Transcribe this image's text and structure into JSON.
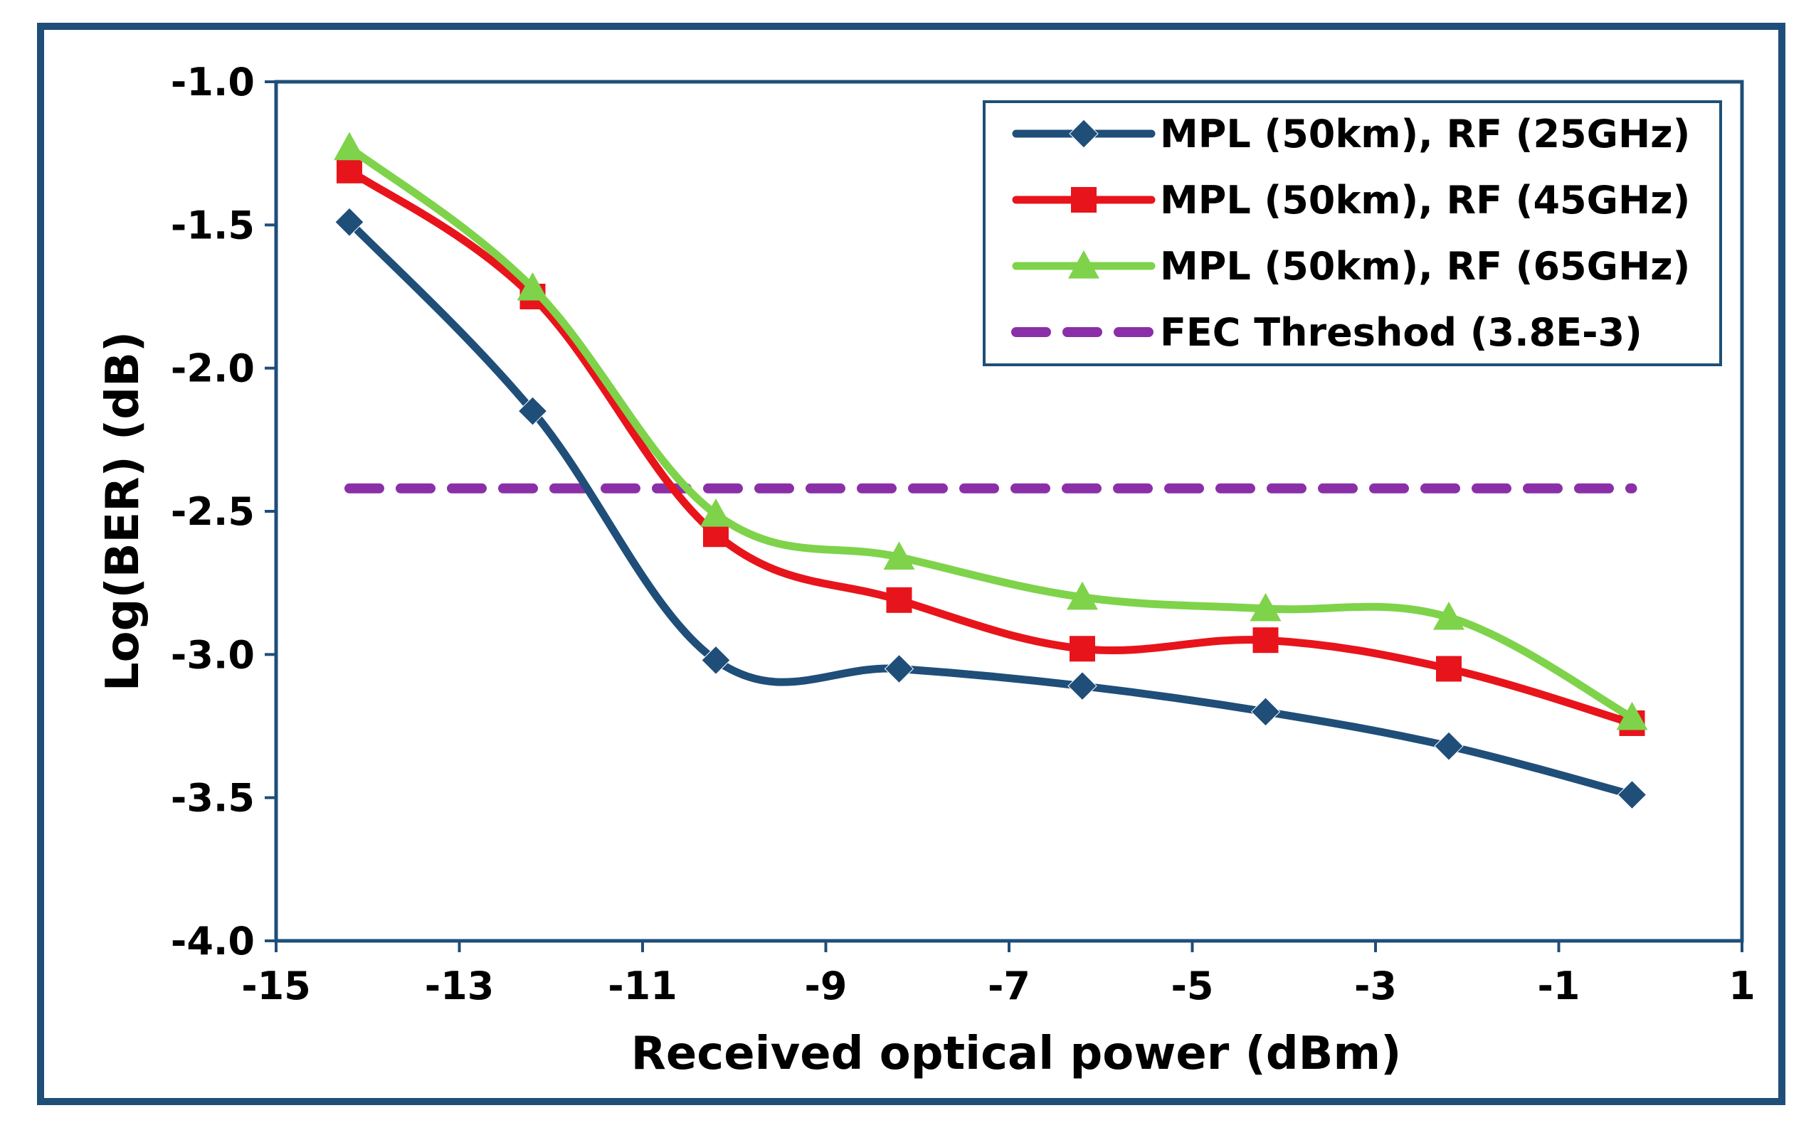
{
  "chart_data": {
    "type": "line",
    "title": "",
    "xlabel": "Received optical power (dBm)",
    "ylabel": "Log(BER) (dB)",
    "xlim": [
      -15,
      1
    ],
    "ylim": [
      -4.0,
      -1.0
    ],
    "xticks": [
      -15,
      -13,
      -11,
      -9,
      -7,
      -5,
      -3,
      -1,
      1
    ],
    "yticks": [
      -1.0,
      -1.5,
      -2.0,
      -2.5,
      -3.0,
      -3.5,
      -4.0
    ],
    "xtick_labels": [
      "-15",
      "-13",
      "-11",
      "-9",
      "-7",
      "-5",
      "-3",
      "-1",
      "1"
    ],
    "ytick_labels": [
      "-1.0",
      "-1.5",
      "-2.0",
      "-2.5",
      "-3.0",
      "-3.5",
      "-4.0"
    ],
    "grid": false,
    "legend_position": "top-right",
    "series": [
      {
        "name": "MPL (50km), RF (25GHz)",
        "color": "#1f4e79",
        "marker": "diamond",
        "x": [
          -14.2,
          -12.2,
          -10.2,
          -8.2,
          -6.2,
          -4.2,
          -2.2,
          -0.2
        ],
        "y": [
          -1.49,
          -2.15,
          -3.02,
          -3.05,
          -3.11,
          -3.2,
          -3.32,
          -3.49
        ]
      },
      {
        "name": "MPL (50km), RF (45GHz)",
        "color": "#e8141b",
        "marker": "square",
        "x": [
          -14.2,
          -12.2,
          -10.2,
          -8.2,
          -6.2,
          -4.2,
          -2.2,
          -0.2
        ],
        "y": [
          -1.31,
          -1.75,
          -2.58,
          -2.81,
          -2.98,
          -2.95,
          -3.05,
          -3.24
        ]
      },
      {
        "name": "MPL (50km), RF (65GHz)",
        "color": "#7ed34a",
        "marker": "triangle",
        "x": [
          -14.2,
          -12.2,
          -10.2,
          -8.2,
          -6.2,
          -4.2,
          -2.2,
          -0.2
        ],
        "y": [
          -1.23,
          -1.72,
          -2.51,
          -2.66,
          -2.8,
          -2.84,
          -2.87,
          -3.22
        ]
      },
      {
        "name": "FEC Threshod (3.8E-3)",
        "color": "#8b2fa8",
        "marker": "none",
        "dashed": true,
        "x": [
          -14.2,
          -0.2
        ],
        "y": [
          -2.42,
          -2.42
        ]
      }
    ]
  }
}
